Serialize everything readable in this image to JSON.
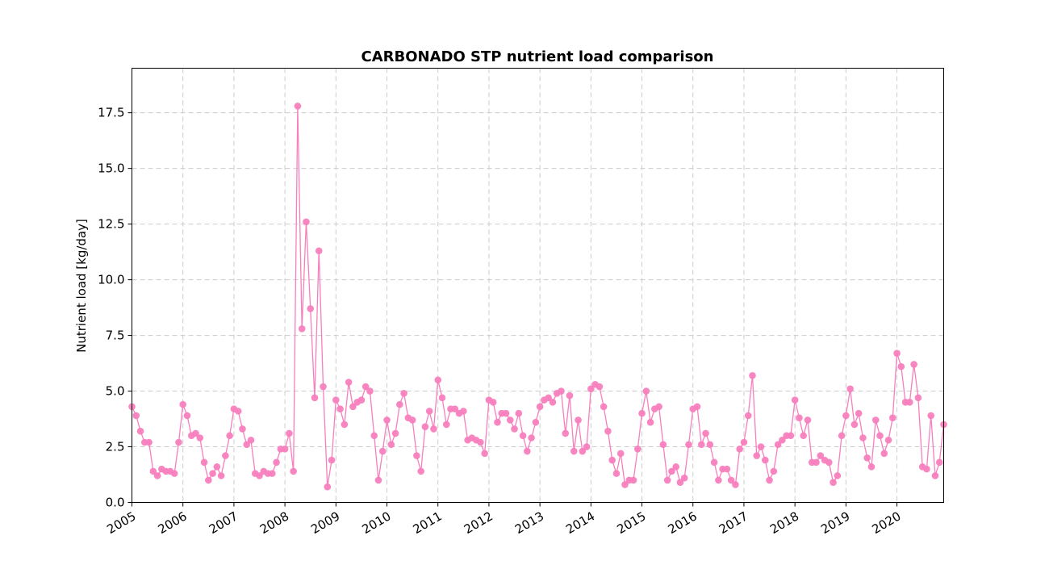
{
  "chart_data": {
    "type": "line",
    "title": "CARBONADO STP nutrient load comparison",
    "xlabel": "",
    "ylabel": "Nutrient load [kg/day]",
    "x_start": "2005-01",
    "x_frequency": "monthly",
    "xlim": [
      "2005-01",
      "2020-12"
    ],
    "ylim": [
      0,
      19.5
    ],
    "x_ticks": [
      "2005",
      "2006",
      "2007",
      "2008",
      "2009",
      "2010",
      "2011",
      "2012",
      "2013",
      "2014",
      "2015",
      "2016",
      "2017",
      "2018",
      "2019",
      "2020"
    ],
    "y_ticks": [
      "0.0",
      "2.5",
      "5.0",
      "7.5",
      "10.0",
      "12.5",
      "15.0",
      "17.5"
    ],
    "grid": true,
    "grid_style": "dashed",
    "series": [
      {
        "color": "#f77fbe",
        "marker": "circle",
        "values": [
          4.3,
          3.9,
          3.2,
          2.7,
          2.7,
          1.4,
          1.2,
          1.5,
          1.4,
          1.4,
          1.3,
          2.7,
          4.4,
          3.9,
          3.0,
          3.1,
          2.9,
          1.8,
          1.0,
          1.3,
          1.6,
          1.2,
          2.1,
          3.0,
          4.2,
          4.1,
          3.3,
          2.6,
          2.8,
          1.3,
          1.2,
          1.4,
          1.3,
          1.3,
          1.8,
          2.4,
          2.4,
          3.1,
          1.4,
          17.8,
          7.8,
          12.6,
          8.7,
          4.7,
          11.3,
          5.2,
          0.7,
          1.9,
          4.6,
          4.2,
          3.5,
          5.4,
          4.3,
          4.5,
          4.6,
          5.2,
          5.0,
          3.0,
          1.0,
          2.3,
          3.7,
          2.6,
          3.1,
          4.4,
          4.9,
          3.8,
          3.7,
          2.1,
          1.4,
          3.4,
          4.1,
          3.3,
          5.5,
          4.7,
          3.5,
          4.2,
          4.2,
          4.0,
          4.1,
          2.8,
          2.9,
          2.8,
          2.7,
          2.2,
          4.6,
          4.5,
          3.6,
          4.0,
          4.0,
          3.7,
          3.3,
          4.0,
          3.0,
          2.3,
          2.9,
          3.6,
          4.3,
          4.6,
          4.7,
          4.5,
          4.9,
          5.0,
          3.1,
          4.8,
          2.3,
          3.7,
          2.3,
          2.5,
          5.1,
          5.3,
          5.2,
          4.3,
          3.2,
          1.9,
          1.3,
          2.2,
          0.8,
          1.0,
          1.0,
          2.4,
          4.0,
          5.0,
          3.6,
          4.2,
          4.3,
          2.6,
          1.0,
          1.4,
          1.6,
          0.9,
          1.1,
          2.6,
          4.2,
          4.3,
          2.6,
          3.1,
          2.6,
          1.8,
          1.0,
          1.5,
          1.5,
          1.0,
          0.8,
          2.4,
          2.7,
          3.9,
          5.7,
          2.1,
          2.5,
          1.9,
          1.0,
          1.4,
          2.6,
          2.8,
          3.0,
          3.0,
          4.6,
          3.8,
          3.0,
          3.7,
          1.8,
          1.8,
          2.1,
          1.9,
          1.8,
          0.9,
          1.2,
          3.0,
          3.9,
          5.1,
          3.5,
          4.0,
          2.9,
          2.0,
          1.6,
          3.7,
          3.0,
          2.2,
          2.8,
          3.8,
          6.7,
          6.1,
          4.5,
          4.5,
          6.2,
          4.7,
          1.6,
          1.5,
          3.9,
          1.2,
          1.8,
          3.5
        ]
      }
    ]
  }
}
